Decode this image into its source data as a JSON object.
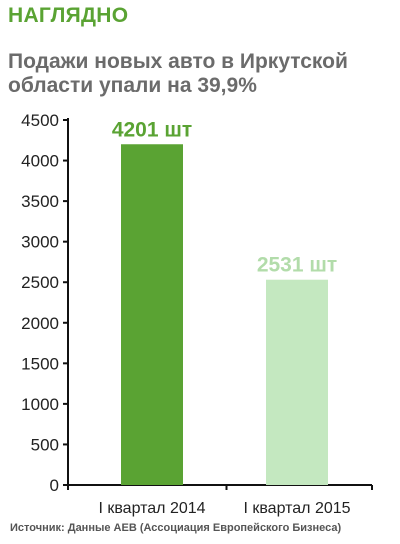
{
  "header": {
    "rubric": "НАГЛЯДНО",
    "headline": "Подажи новых авто в Иркутской области упали на 39,9%"
  },
  "footer": {
    "source": "Источник: Данные АЕВ (Ассоциация Европейского Бизнеса)"
  },
  "chart_data": {
    "type": "bar",
    "categories": [
      "I квартал 2014",
      "I квартал 2015"
    ],
    "values": [
      4201,
      2531
    ],
    "data_labels": [
      "4201 шт",
      "2531 шт"
    ],
    "ylim": [
      0,
      4500
    ],
    "yticks": [
      0,
      500,
      1000,
      1500,
      2000,
      2500,
      3000,
      3500,
      4000,
      4500
    ],
    "grid": false,
    "colors": {
      "bars": [
        "#5aa333",
        "#c4e8c0"
      ],
      "labels": [
        "#5aa333",
        "#b2dcaa"
      ],
      "axis": "#111111"
    }
  }
}
